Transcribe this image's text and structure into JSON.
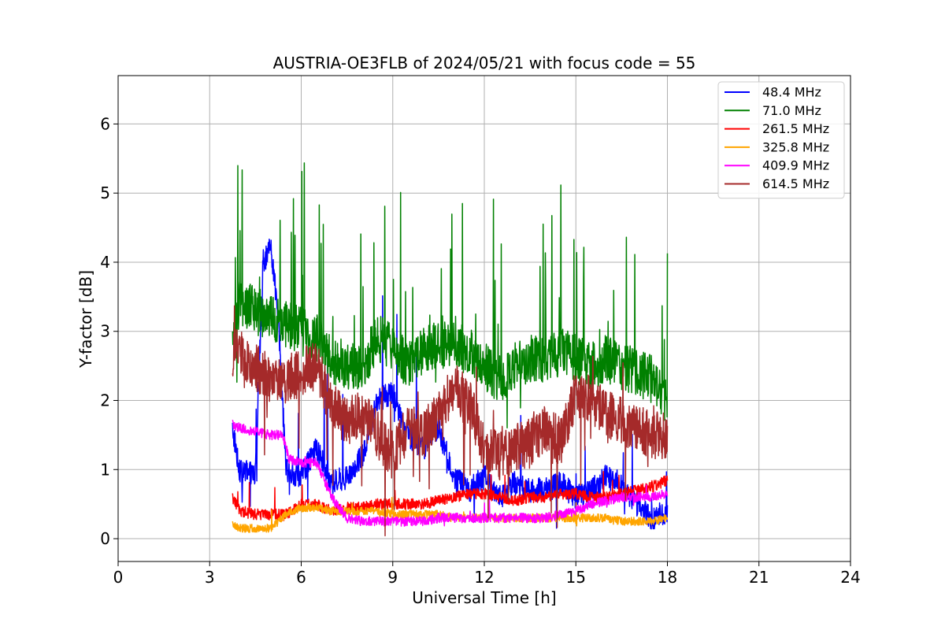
{
  "chart_data": {
    "type": "line",
    "title": "AUSTRIA-OE3FLB of 2024/05/21 with focus code = 55",
    "xlabel": "Universal Time [h]",
    "ylabel": "Y-factor [dB]",
    "xlim": [
      0,
      24
    ],
    "ylim": [
      -0.33,
      6.7
    ],
    "xticks": [
      0,
      3,
      6,
      9,
      12,
      15,
      18,
      21,
      24
    ],
    "yticks": [
      0,
      1,
      2,
      3,
      4,
      5,
      6
    ],
    "grid": true,
    "legend_position": "top-right",
    "x_start": 3.75,
    "x_end": 18.0,
    "series": [
      {
        "name": " 48.4 MHz",
        "color": "#0000ff",
        "x": [
          3.75,
          4.0,
          4.5,
          4.75,
          5.0,
          5.25,
          5.5,
          6.0,
          6.5,
          7.0,
          7.5,
          8.0,
          8.5,
          9.0,
          9.5,
          10.0,
          10.5,
          11.0,
          11.5,
          12.0,
          12.5,
          13.0,
          13.5,
          14.0,
          14.5,
          15.0,
          15.5,
          16.0,
          16.5,
          17.0,
          17.5,
          18.0
        ],
        "values": [
          1.6,
          0.95,
          0.95,
          4.0,
          4.2,
          3.2,
          1.0,
          0.9,
          1.3,
          0.8,
          0.9,
          1.2,
          2.0,
          2.1,
          1.5,
          1.3,
          1.6,
          0.9,
          0.7,
          0.9,
          0.6,
          0.8,
          0.7,
          0.7,
          0.8,
          0.6,
          0.7,
          0.9,
          0.8,
          0.5,
          0.3,
          0.4
        ]
      },
      {
        "name": " 71.0 MHz",
        "color": "#008000",
        "x": [
          3.75,
          4.0,
          4.5,
          5.0,
          5.5,
          6.0,
          6.5,
          7.0,
          7.5,
          8.0,
          8.5,
          9.0,
          9.5,
          10.0,
          10.5,
          11.0,
          11.5,
          12.0,
          12.5,
          13.0,
          13.5,
          14.0,
          14.5,
          15.0,
          15.5,
          16.0,
          16.5,
          17.0,
          17.5,
          18.0
        ],
        "values": [
          2.8,
          3.4,
          3.3,
          3.2,
          3.1,
          3.0,
          2.9,
          2.6,
          2.5,
          2.5,
          2.9,
          2.8,
          2.5,
          2.7,
          2.8,
          2.8,
          2.7,
          2.5,
          2.3,
          2.5,
          2.6,
          2.6,
          2.7,
          2.6,
          2.5,
          2.6,
          2.5,
          2.4,
          2.3,
          2.0
        ]
      },
      {
        "name": " 261.5 MHz",
        "color": "#ff0000",
        "x": [
          3.75,
          4.0,
          4.5,
          5.0,
          5.5,
          6.0,
          6.5,
          7.0,
          7.5,
          8.0,
          8.5,
          9.0,
          9.5,
          10.0,
          10.5,
          11.0,
          11.5,
          12.0,
          12.5,
          13.0,
          13.5,
          14.0,
          14.5,
          15.0,
          15.5,
          16.0,
          16.5,
          17.0,
          17.5,
          18.0
        ],
        "values": [
          0.6,
          0.4,
          0.35,
          0.35,
          0.35,
          0.5,
          0.5,
          0.4,
          0.45,
          0.45,
          0.5,
          0.5,
          0.5,
          0.5,
          0.55,
          0.6,
          0.65,
          0.65,
          0.6,
          0.55,
          0.6,
          0.6,
          0.65,
          0.65,
          0.6,
          0.6,
          0.65,
          0.7,
          0.75,
          0.85
        ]
      },
      {
        "name": " 325.8 MHz",
        "color": "#ffa500",
        "x": [
          3.75,
          4.0,
          4.5,
          5.0,
          5.5,
          6.0,
          6.5,
          7.0,
          7.5,
          8.0,
          8.5,
          9.0,
          9.5,
          10.0,
          10.5,
          11.0,
          11.5,
          12.0,
          12.5,
          13.0,
          13.5,
          14.0,
          14.5,
          15.0,
          15.5,
          16.0,
          16.5,
          17.0,
          17.5,
          18.0
        ],
        "values": [
          0.2,
          0.15,
          0.15,
          0.15,
          0.35,
          0.45,
          0.45,
          0.4,
          0.4,
          0.4,
          0.4,
          0.35,
          0.35,
          0.35,
          0.35,
          0.3,
          0.3,
          0.3,
          0.3,
          0.3,
          0.3,
          0.3,
          0.3,
          0.3,
          0.3,
          0.3,
          0.25,
          0.25,
          0.25,
          0.3
        ]
      },
      {
        "name": " 409.9 MHz",
        "color": "#ff00ff",
        "x": [
          3.75,
          4.0,
          4.5,
          5.0,
          5.4,
          5.6,
          6.0,
          6.5,
          7.0,
          7.5,
          8.0,
          8.5,
          9.0,
          9.5,
          10.0,
          10.5,
          11.0,
          11.5,
          12.0,
          12.5,
          13.0,
          13.5,
          14.0,
          14.5,
          15.0,
          15.5,
          16.0,
          16.5,
          17.0,
          17.5,
          18.0
        ],
        "values": [
          1.65,
          1.6,
          1.55,
          1.5,
          1.5,
          1.15,
          1.1,
          1.1,
          0.6,
          0.3,
          0.25,
          0.25,
          0.25,
          0.25,
          0.25,
          0.3,
          0.3,
          0.3,
          0.3,
          0.3,
          0.3,
          0.3,
          0.3,
          0.35,
          0.4,
          0.5,
          0.55,
          0.6,
          0.6,
          0.6,
          0.65
        ]
      },
      {
        "name": " 614.5 MHz",
        "color": "#a52a2a",
        "x": [
          3.75,
          4.0,
          4.5,
          5.0,
          5.5,
          6.0,
          6.5,
          7.0,
          7.5,
          8.0,
          8.5,
          9.0,
          9.5,
          10.0,
          10.5,
          11.0,
          11.5,
          12.0,
          12.5,
          13.0,
          13.5,
          14.0,
          14.5,
          15.0,
          15.5,
          16.0,
          16.5,
          17.0,
          17.5,
          18.0
        ],
        "values": [
          2.7,
          2.7,
          2.5,
          2.3,
          2.3,
          2.4,
          2.5,
          1.9,
          1.7,
          1.8,
          1.5,
          1.2,
          1.6,
          1.5,
          1.8,
          2.2,
          2.0,
          1.3,
          1.2,
          1.3,
          1.4,
          1.6,
          1.4,
          2.1,
          2.0,
          1.8,
          1.7,
          1.6,
          1.5,
          1.5
        ]
      }
    ]
  }
}
